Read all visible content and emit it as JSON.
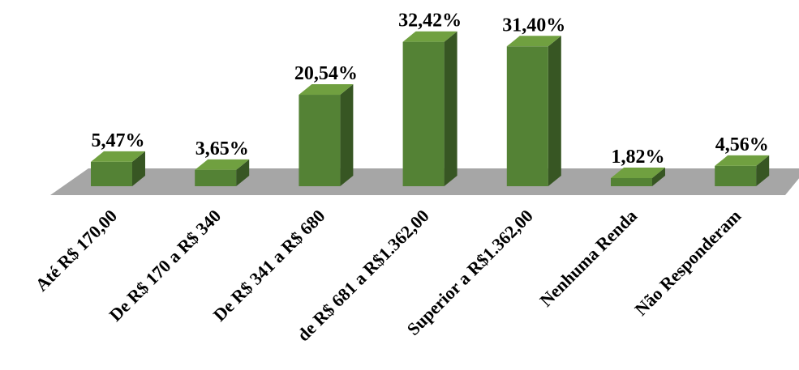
{
  "chart_data": {
    "type": "bar",
    "title": "",
    "xlabel": "",
    "ylabel": "",
    "categories": [
      "Até R$ 170,00",
      "De R$ 170 a R$ 340",
      "De R$ 341 a R$ 680",
      "de R$ 681 a R$1.362,00",
      "Superior a R$1.362,00",
      "Nenhuma Renda",
      "Não Responderam"
    ],
    "values": [
      5.47,
      3.65,
      20.54,
      32.42,
      31.4,
      1.82,
      4.56
    ],
    "labels": [
      "5,47%",
      "3,65%",
      "20,54%",
      "32,42%",
      "31,40%",
      "1,82%",
      "4,56%"
    ],
    "ylim": [
      0,
      35
    ],
    "grid": false,
    "legend": "none",
    "style": "3d-column",
    "colors": {
      "bar_front": "#548235",
      "bar_side": "#375623",
      "bar_top": "#70a040",
      "floor": "#a6a6a6"
    }
  }
}
